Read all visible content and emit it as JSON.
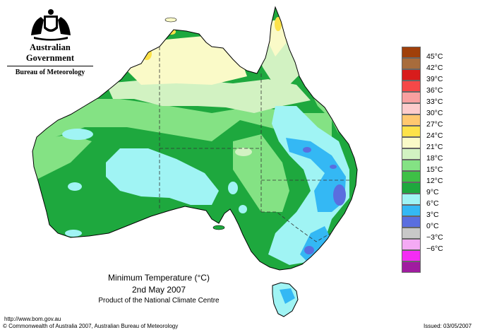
{
  "header": {
    "government": "Australian Government",
    "agency": "Bureau of Meteorology"
  },
  "title": {
    "line1": "Minimum Temperature (°C)",
    "line2": "2nd May 2007",
    "line3": "Product of the National Climate Centre"
  },
  "footer": {
    "url": "http://www.bom.gov.au",
    "copyright": "© Commonwealth of Australia 2007, Australian Bureau of Meteorology",
    "issued": "Issued: 03/05/2007"
  },
  "legend": [
    {
      "label": "45°C",
      "color": "#a0400a"
    },
    {
      "label": "42°C",
      "color": "#a86c3c"
    },
    {
      "label": "39°C",
      "color": "#d81c1c"
    },
    {
      "label": "36°C",
      "color": "#f54848"
    },
    {
      "label": "33°C",
      "color": "#f8a0a0"
    },
    {
      "label": "30°C",
      "color": "#fdcccc"
    },
    {
      "label": "27°C",
      "color": "#ffc870"
    },
    {
      "label": "24°C",
      "color": "#fde24a"
    },
    {
      "label": "21°C",
      "color": "#fafac8"
    },
    {
      "label": "18°C",
      "color": "#d2f2c2"
    },
    {
      "label": "15°C",
      "color": "#84e284"
    },
    {
      "label": "12°C",
      "color": "#3ec046"
    },
    {
      "label": "9°C",
      "color": "#1ea83e"
    },
    {
      "label": "6°C",
      "color": "#a0f4f4"
    },
    {
      "label": "3°C",
      "color": "#34b8f4"
    },
    {
      "label": "0°C",
      "color": "#5a6edf"
    },
    {
      "label": "−3°C",
      "color": "#c8c8c8"
    },
    {
      "label": "−6°C",
      "color": "#f4aaf4"
    },
    {
      "label": "",
      "color": "#f42cf4"
    },
    {
      "label": "",
      "color": "#a01ca0"
    }
  ]
}
